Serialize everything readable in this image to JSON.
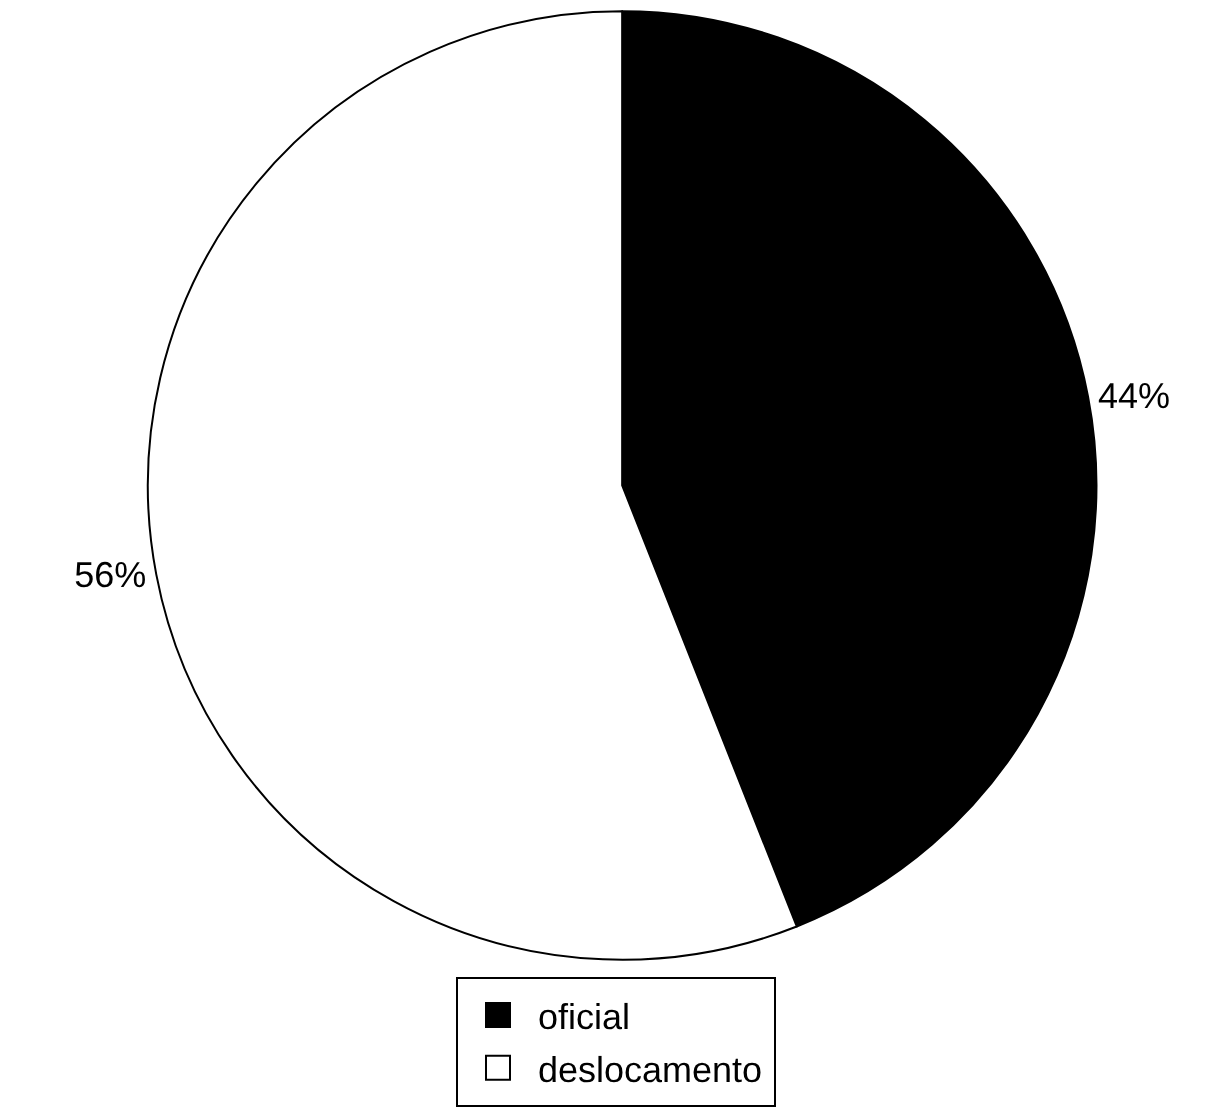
{
  "chart_data": {
    "type": "pie",
    "categories": [
      "oficial",
      "deslocamento"
    ],
    "values": [
      44,
      56
    ],
    "colors": [
      "#000000",
      "#ffffff"
    ],
    "value_labels": [
      "44%",
      "56%"
    ],
    "legend": "bottom"
  }
}
